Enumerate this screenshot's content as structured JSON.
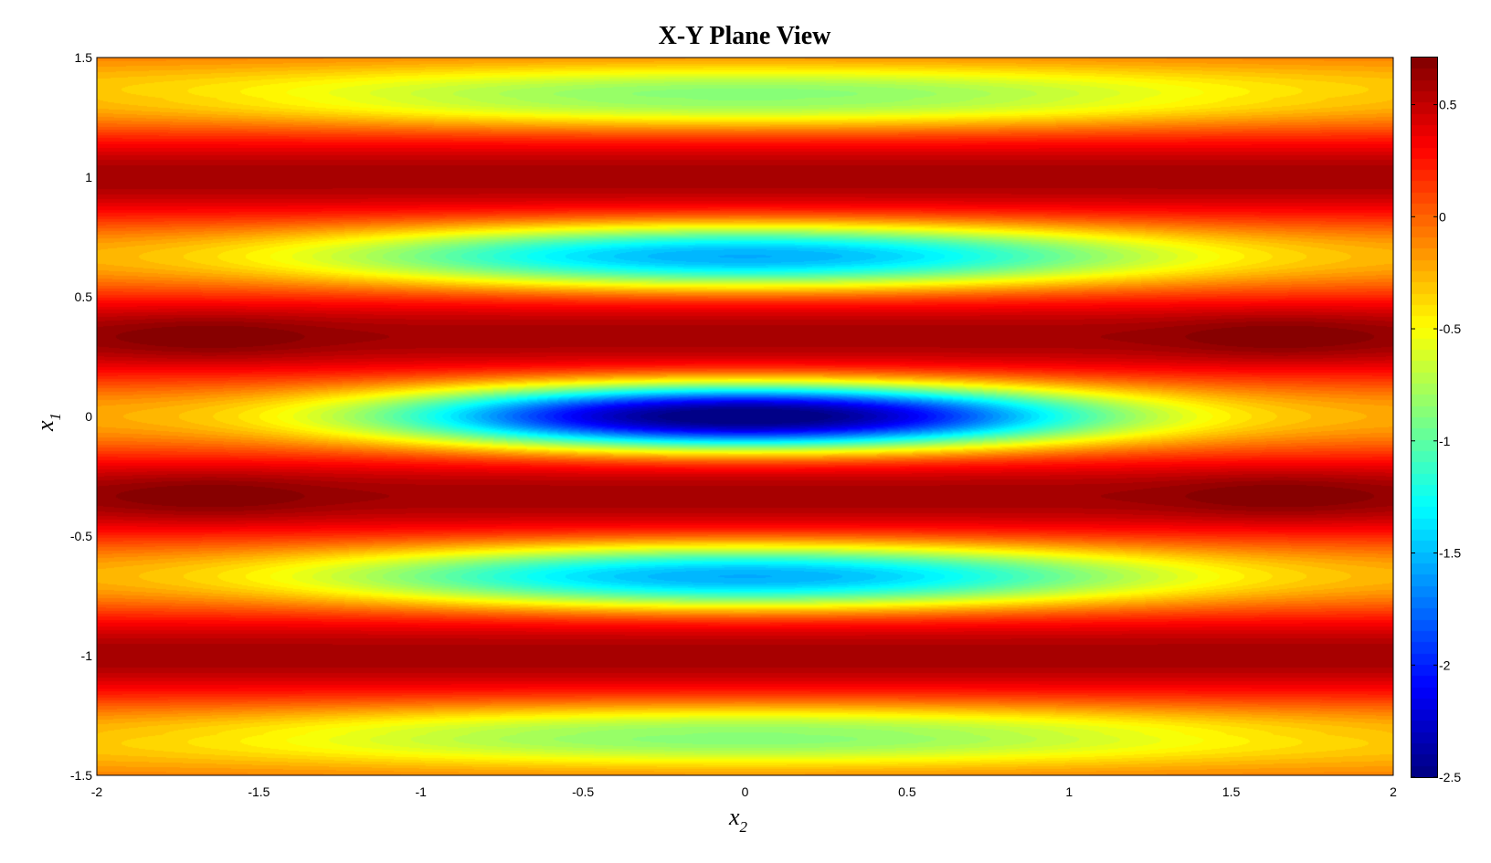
{
  "chart_data": {
    "type": "heatmap",
    "title": "X-Y Plane View",
    "xlabel": {
      "base": "x",
      "sub": "2"
    },
    "ylabel": {
      "base": "x",
      "sub": "1"
    },
    "xlim": [
      -2,
      2
    ],
    "ylim": [
      -1.5,
      1.5
    ],
    "xticks": [
      -2,
      -1.5,
      -1,
      -0.5,
      0,
      0.5,
      1,
      1.5,
      2
    ],
    "xtick_labels": [
      "-2",
      "-1.5",
      "-1",
      "-0.5",
      "0",
      "0.5",
      "1",
      "1.5",
      "2"
    ],
    "yticks": [
      -1.5,
      -1,
      -0.5,
      0,
      0.5,
      1,
      1.5
    ],
    "ytick_labels": [
      "-1.5",
      "-1",
      "-0.5",
      "0",
      "0.5",
      "1",
      "1.5"
    ],
    "colormap": "jet",
    "clim": [
      -2.5,
      0.71
    ],
    "colorbar": {
      "placement": "right",
      "ticks": [
        0.5,
        0,
        -0.5,
        -1,
        -1.5,
        -2,
        -2.5
      ],
      "tick_labels": [
        "0.5",
        "0",
        "-0.5",
        "-1",
        "-1.5",
        "-2",
        "-2.5"
      ]
    },
    "features": {
      "global_min": {
        "x2": 0,
        "x1": 0,
        "value": -2.5
      },
      "minima": [
        {
          "x2": 0,
          "x1": 0,
          "value": -2.5
        },
        {
          "x2": 0,
          "x1": 0.67,
          "value": -1.5
        },
        {
          "x2": 0,
          "x1": -0.67,
          "value": -1.5
        },
        {
          "x2": 0,
          "x1": 1.33,
          "value": -0.8
        },
        {
          "x2": 0,
          "x1": -1.33,
          "value": -0.8
        }
      ],
      "maxima": [
        {
          "x2": -1.65,
          "x1": 0.33,
          "value": 0.7
        },
        {
          "x2": 1.65,
          "x1": 0.33,
          "value": 0.7
        },
        {
          "x2": -1.65,
          "x1": -0.33,
          "value": 0.7
        },
        {
          "x2": 1.65,
          "x1": -0.33,
          "value": 0.7
        }
      ]
    },
    "grid": false
  }
}
